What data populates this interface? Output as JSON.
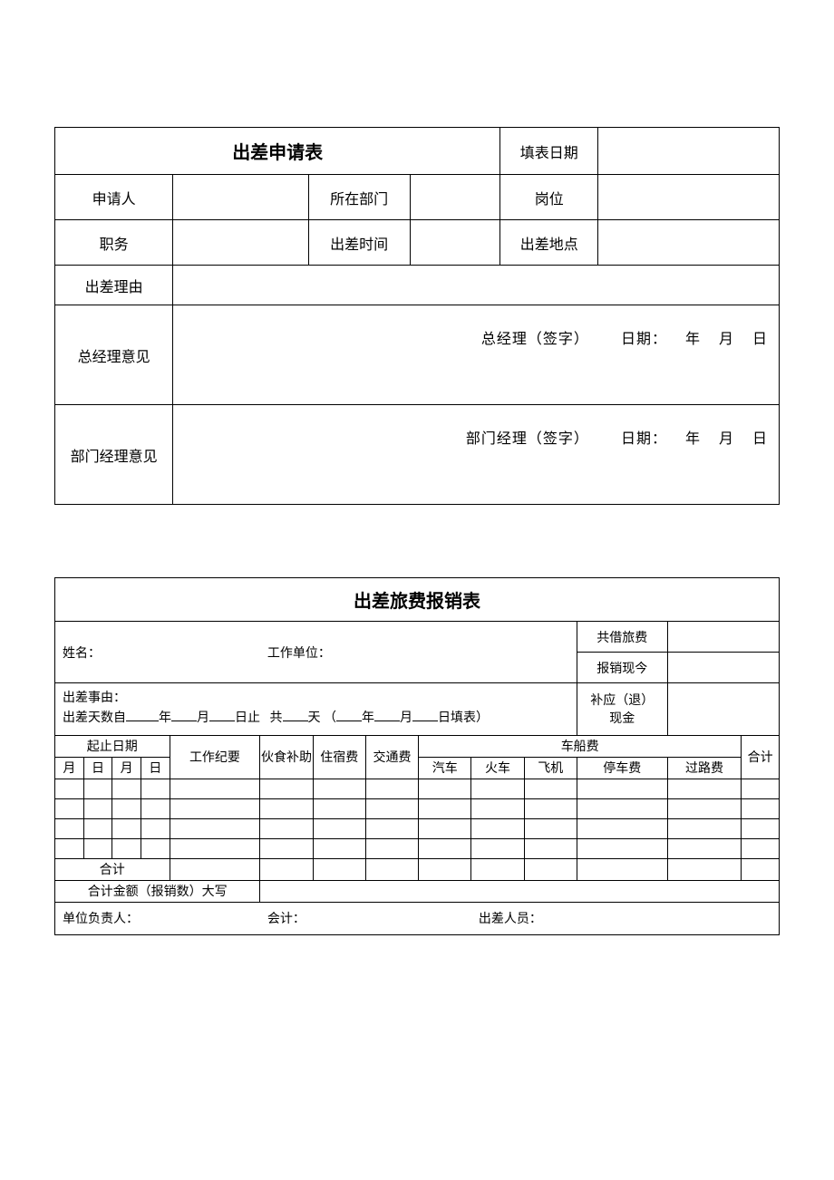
{
  "table1": {
    "title": "出差申请表",
    "fill_date_label": "填表日期",
    "applicant_label": "申请人",
    "department_label": "所在部门",
    "position_label": "岗位",
    "duty_label": "职务",
    "trip_time_label": "出差时间",
    "trip_place_label": "出差地点",
    "reason_label": "出差理由",
    "gm_opinion_label": "总经理意见",
    "gm_sig_prefix": "总经理（签字）",
    "dm_opinion_label": "部门经理意见",
    "dm_sig_prefix": "部门经理（签字）",
    "date_label": "日期：",
    "year": "年",
    "month": "月",
    "day": "日"
  },
  "table2": {
    "title": "出差旅费报销表",
    "name_label": "姓名：",
    "workunit_label": "工作单位：",
    "borrowed_label": "共借旅费",
    "reimburse_label": "报销现今",
    "refund_label": "补应（退）现金",
    "reason_label": "出差事由：",
    "days_prefix": "出差天数自",
    "year": "年",
    "month": "月",
    "day": "日",
    "stop": "止",
    "total_char": "共",
    "days_char": "天",
    "lparen": "（",
    "rparen": "）",
    "fill_form": "填表",
    "header": {
      "date_range": "起止日期",
      "m": "月",
      "d": "日",
      "work_log": "工作纪要",
      "meal": "伙食补助",
      "lodging": "住宿费",
      "transport": "交通费",
      "vehicle": "车船费",
      "car": "汽车",
      "train": "火车",
      "plane": "飞机",
      "parking": "停车费",
      "toll": "过路费",
      "total": "合计"
    },
    "sum_label": "合计",
    "sum_cn_label": "合计金额（报销数）大写",
    "footer": {
      "unit_head": "单位负责人：",
      "accountant": "会计：",
      "traveler": "出差人员："
    },
    "data_rows": 4
  },
  "style": {
    "border_color": "#000000",
    "bg_color": "#ffffff",
    "title_fontsize": 20,
    "body_fontsize": 16,
    "t2_fontsize": 14
  }
}
